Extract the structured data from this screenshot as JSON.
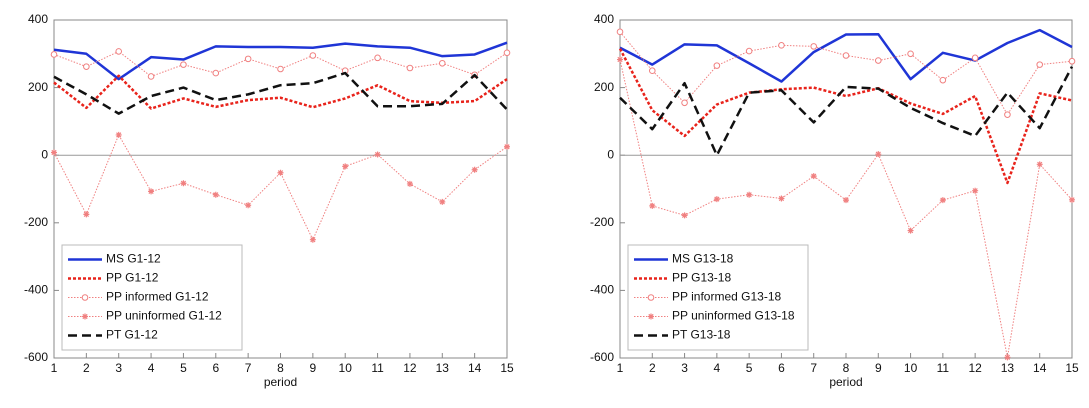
{
  "chart_data": [
    {
      "type": "line",
      "xlabel": "period",
      "x": [
        1,
        2,
        3,
        4,
        5,
        6,
        7,
        8,
        9,
        10,
        11,
        12,
        13,
        14,
        15
      ],
      "xlim": [
        1,
        15
      ],
      "xticks": [
        1,
        2,
        3,
        4,
        5,
        6,
        7,
        8,
        9,
        10,
        11,
        12,
        13,
        14,
        15
      ],
      "ylim": [
        -600,
        400
      ],
      "yticks": [
        -600,
        -400,
        -200,
        0,
        200,
        400
      ],
      "legend": "lower left",
      "series": [
        {
          "name": "MS G1-12",
          "color": "#1f35d6",
          "style": "solid",
          "values": [
            312,
            300,
            225,
            290,
            283,
            322,
            320,
            320,
            318,
            330,
            322,
            318,
            293,
            298,
            333
          ]
        },
        {
          "name": "PP G1-12",
          "color": "#e8231b",
          "style": "dotted",
          "values": [
            215,
            140,
            235,
            138,
            168,
            143,
            163,
            170,
            142,
            168,
            207,
            160,
            155,
            160,
            225
          ]
        },
        {
          "name": "PP informed G1-12",
          "color": "#f08080",
          "style": "thin-dotted",
          "marker": "circle",
          "values": [
            298,
            262,
            307,
            233,
            268,
            243,
            285,
            255,
            295,
            250,
            288,
            258,
            272,
            238,
            303
          ]
        },
        {
          "name": "PP uninformed G1-12",
          "color": "#f08080",
          "style": "thin-dotted",
          "marker": "star",
          "values": [
            8,
            -175,
            60,
            -107,
            -83,
            -117,
            -148,
            -52,
            -250,
            -33,
            2,
            -85,
            -138,
            -43,
            25
          ]
        },
        {
          "name": "PT G1-12",
          "color": "#111111",
          "style": "dashed",
          "values": [
            232,
            180,
            123,
            175,
            200,
            163,
            180,
            207,
            213,
            243,
            145,
            145,
            152,
            237,
            135
          ]
        }
      ]
    },
    {
      "type": "line",
      "xlabel": "period",
      "x": [
        1,
        2,
        3,
        4,
        5,
        6,
        7,
        8,
        9,
        10,
        11,
        12,
        13,
        14,
        15
      ],
      "xlim": [
        1,
        15
      ],
      "xticks": [
        1,
        2,
        3,
        4,
        5,
        6,
        7,
        8,
        9,
        10,
        11,
        12,
        13,
        14,
        15
      ],
      "ylim": [
        -600,
        400
      ],
      "yticks": [
        -600,
        -400,
        -200,
        0,
        200,
        400
      ],
      "legend": "lower left",
      "series": [
        {
          "name": "MS G13-18",
          "color": "#1f35d6",
          "style": "solid",
          "values": [
            318,
            268,
            328,
            325,
            272,
            218,
            305,
            357,
            358,
            225,
            303,
            280,
            332,
            370,
            320
          ]
        },
        {
          "name": "PP G13-18",
          "color": "#e8231b",
          "style": "dotted",
          "values": [
            315,
            133,
            57,
            150,
            185,
            195,
            200,
            175,
            198,
            153,
            122,
            175,
            -82,
            183,
            162
          ]
        },
        {
          "name": "PP informed G13-18",
          "color": "#f08080",
          "style": "thin-dotted",
          "marker": "circle",
          "values": [
            365,
            250,
            155,
            265,
            308,
            325,
            322,
            295,
            280,
            300,
            222,
            288,
            120,
            268,
            278
          ]
        },
        {
          "name": "PP uninformed G13-18",
          "color": "#f08080",
          "style": "thin-dotted",
          "marker": "star",
          "values": [
            283,
            -150,
            -178,
            -130,
            -117,
            -128,
            -62,
            -133,
            3,
            -223,
            -133,
            -105,
            -598,
            -27,
            -132
          ]
        },
        {
          "name": "PT G13-18",
          "color": "#111111",
          "style": "dashed",
          "values": [
            170,
            77,
            213,
            0,
            185,
            192,
            97,
            202,
            197,
            140,
            95,
            57,
            185,
            80,
            262
          ]
        }
      ]
    }
  ]
}
